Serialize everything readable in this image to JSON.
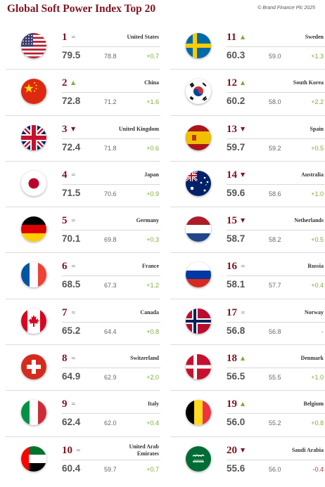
{
  "title": "Global Soft Power Index Top 20",
  "credit": "© Brand Finance Plc 2025",
  "colors": {
    "accent": "#7d1421",
    "positive": "#7cad3a",
    "neutral": "#888888"
  },
  "chart_data": {
    "type": "table",
    "title": "Global Soft Power Index Top 20",
    "columns": [
      "rank",
      "movement",
      "country",
      "score_2025",
      "score_2024",
      "change"
    ],
    "rows": [
      {
        "rank": "1",
        "move": "same",
        "move_symbol": "=",
        "country": "United States",
        "flag": "us",
        "score": "79.5",
        "prev": "78.8",
        "change": "+0.7"
      },
      {
        "rank": "2",
        "move": "up",
        "move_symbol": "▲",
        "country": "China",
        "flag": "cn",
        "score": "72.8",
        "prev": "71.2",
        "change": "+1.6"
      },
      {
        "rank": "3",
        "move": "down",
        "move_symbol": "▼",
        "country": "United Kingdom",
        "flag": "gb",
        "score": "72.4",
        "prev": "71.8",
        "change": "+0.6"
      },
      {
        "rank": "4",
        "move": "same",
        "move_symbol": "=",
        "country": "Japan",
        "flag": "jp",
        "score": "71.5",
        "prev": "70.6",
        "change": "+0.9"
      },
      {
        "rank": "5",
        "move": "same",
        "move_symbol": "=",
        "country": "Germany",
        "flag": "de",
        "score": "70.1",
        "prev": "69.8",
        "change": "+0.3"
      },
      {
        "rank": "6",
        "move": "same",
        "move_symbol": "=",
        "country": "France",
        "flag": "fr",
        "score": "68.5",
        "prev": "67.3",
        "change": "+1.2"
      },
      {
        "rank": "7",
        "move": "same",
        "move_symbol": "=",
        "country": "Canada",
        "flag": "ca",
        "score": "65.2",
        "prev": "64.4",
        "change": "+0.8"
      },
      {
        "rank": "8",
        "move": "same",
        "move_symbol": "=",
        "country": "Switzerland",
        "flag": "ch",
        "score": "64.9",
        "prev": "62.9",
        "change": "+2.0"
      },
      {
        "rank": "9",
        "move": "same",
        "move_symbol": "=",
        "country": "Italy",
        "flag": "it",
        "score": "62.4",
        "prev": "62.0",
        "change": "+0.4"
      },
      {
        "rank": "10",
        "move": "same",
        "move_symbol": "=",
        "country": "United Arab Emirates",
        "flag": "ae",
        "score": "60.4",
        "prev": "59.7",
        "change": "+0.7"
      },
      {
        "rank": "11",
        "move": "up",
        "move_symbol": "▲",
        "country": "Sweden",
        "flag": "se",
        "score": "60.3",
        "prev": "59.0",
        "change": "+1.3"
      },
      {
        "rank": "12",
        "move": "up",
        "move_symbol": "▲",
        "country": "South Korea",
        "flag": "kr",
        "score": "60.2",
        "prev": "58.0",
        "change": "+2.2"
      },
      {
        "rank": "13",
        "move": "down",
        "move_symbol": "▼",
        "country": "Spain",
        "flag": "es",
        "score": "59.7",
        "prev": "59.2",
        "change": "+0.5"
      },
      {
        "rank": "14",
        "move": "down",
        "move_symbol": "▼",
        "country": "Australia",
        "flag": "au",
        "score": "59.6",
        "prev": "58.6",
        "change": "+1.0"
      },
      {
        "rank": "15",
        "move": "down",
        "move_symbol": "▼",
        "country": "Netherlands",
        "flag": "nl",
        "score": "58.7",
        "prev": "58.2",
        "change": "+0.5"
      },
      {
        "rank": "16",
        "move": "same",
        "move_symbol": "=",
        "country": "Russia",
        "flag": "ru",
        "score": "58.1",
        "prev": "57.7",
        "change": "+0.4"
      },
      {
        "rank": "17",
        "move": "same",
        "move_symbol": "=",
        "country": "Norway",
        "flag": "no",
        "score": "56.8",
        "prev": "56.8",
        "change": "-"
      },
      {
        "rank": "18",
        "move": "up",
        "move_symbol": "▲",
        "country": "Denmark",
        "flag": "dk",
        "score": "56.5",
        "prev": "55.5",
        "change": "+1.0"
      },
      {
        "rank": "19",
        "move": "up",
        "move_symbol": "▲",
        "country": "Belgium",
        "flag": "be",
        "score": "56.0",
        "prev": "55.2",
        "change": "+0.8"
      },
      {
        "rank": "20",
        "move": "down",
        "move_symbol": "▼",
        "country": "Saudi Arabia",
        "flag": "sa",
        "score": "55.6",
        "prev": "56.0",
        "change": "-0.4"
      }
    ]
  }
}
